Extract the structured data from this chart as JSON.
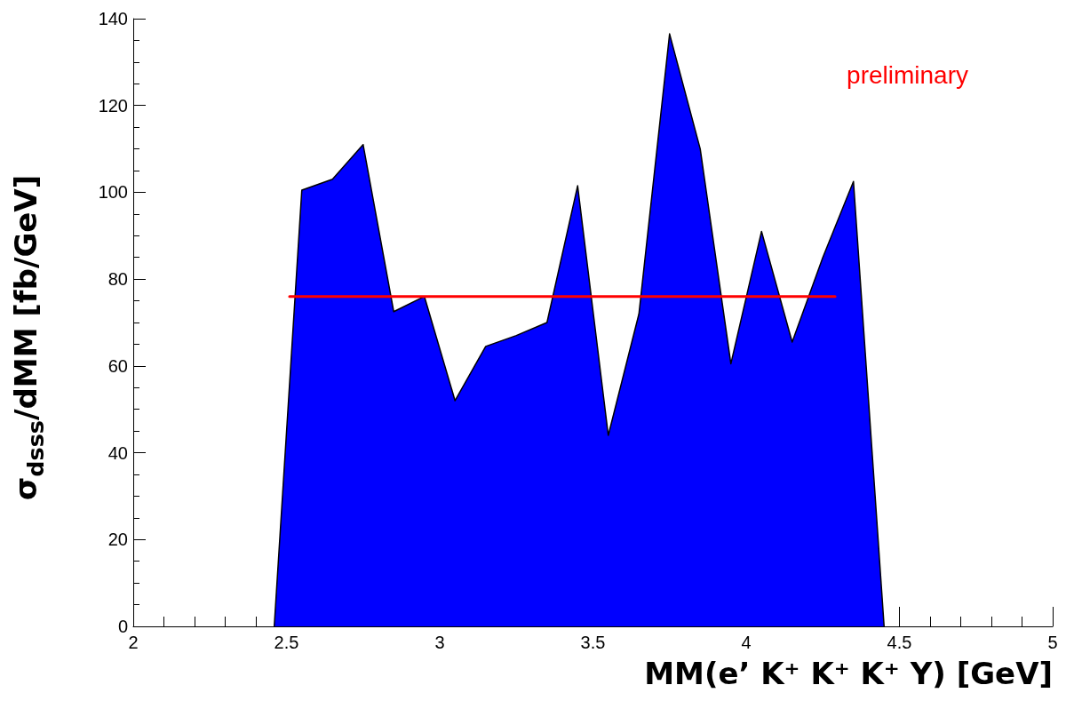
{
  "chart_data": {
    "type": "area",
    "xlabel": "MM(e’ K⁺ K⁺ K⁺ Y) [GeV]",
    "ylabel": "σ$_{dsss}$/dMM [fb/GeV]",
    "annotations": [
      "preliminary"
    ],
    "x": [
      2.46,
      2.55,
      2.65,
      2.75,
      2.85,
      2.95,
      3.05,
      3.15,
      3.25,
      3.35,
      3.45,
      3.55,
      3.65,
      3.75,
      3.85,
      3.95,
      4.05,
      4.15,
      4.25,
      4.35,
      4.45
    ],
    "series": [
      {
        "type": "area",
        "color": "#0000ff",
        "values": [
          0,
          100.5,
          103,
          111,
          72.5,
          76,
          52,
          64.5,
          67,
          70,
          101.5,
          44,
          72,
          136.5,
          110,
          60.5,
          91,
          65.5,
          85,
          102.5,
          0
        ]
      },
      {
        "type": "line",
        "color": "#ff0000",
        "x": [
          2.51,
          4.29
        ],
        "values": [
          76,
          76
        ]
      }
    ],
    "xlim": [
      2,
      5
    ],
    "xticks": [
      2,
      2.5,
      3,
      3.5,
      4,
      4.5,
      5
    ],
    "ylim": [
      0,
      140
    ],
    "yticks": [
      0,
      20,
      40,
      60,
      80,
      100,
      120,
      140
    ],
    "grid": false,
    "marker": "none"
  }
}
